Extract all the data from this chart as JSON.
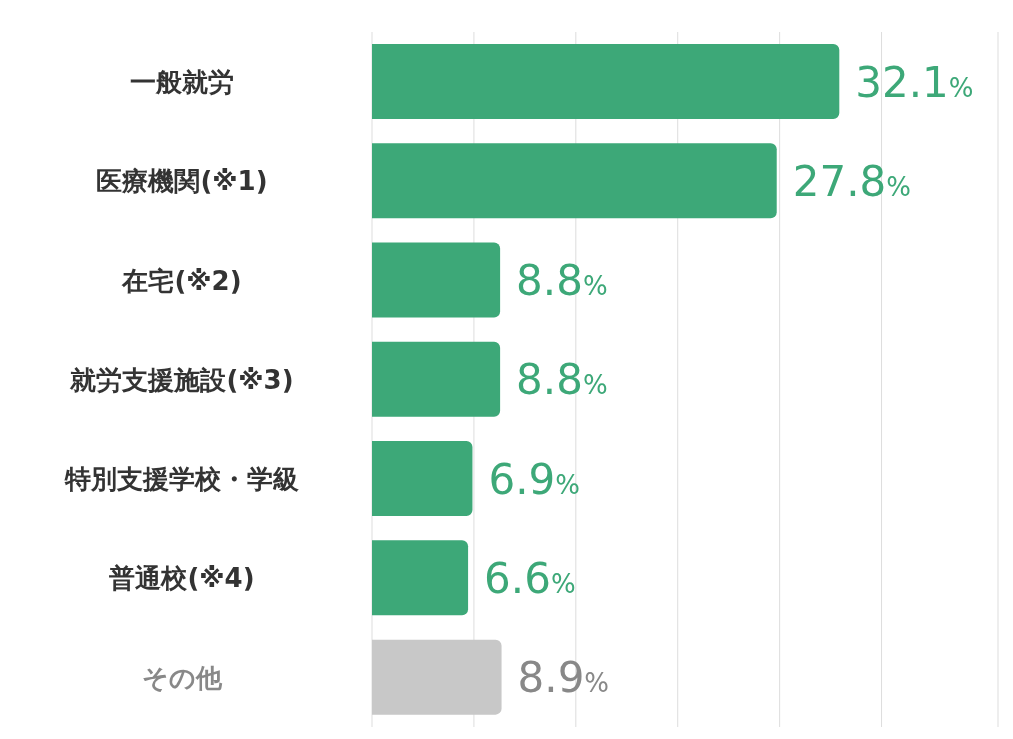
{
  "chart_data": {
    "type": "bar",
    "orientation": "horizontal",
    "categories": [
      "一般就労",
      "医療機関(※1)",
      "在宅(※2)",
      "就労支援施設(※3)",
      "特別支援学校・学級",
      "普通校(※4)",
      "その他"
    ],
    "values": [
      32.1,
      27.8,
      8.8,
      8.8,
      6.9,
      6.6,
      8.9
    ],
    "colors": [
      "#3da878",
      "#3da878",
      "#3da878",
      "#3da878",
      "#3da878",
      "#3da878",
      "#c8c8c8"
    ],
    "value_labels": [
      "32.1%",
      "27.8%",
      "8.8%",
      "8.8%",
      "6.9%",
      "6.6%",
      "8.9%"
    ],
    "xlim": [
      0,
      43
    ],
    "xticks": [
      {
        "value": 0,
        "label": null
      },
      {
        "value": 7,
        "label": null
      },
      {
        "value": 14,
        "label": null
      },
      {
        "value": 21,
        "label": null
      },
      {
        "value": 28,
        "label": null
      },
      {
        "value": 35,
        "label": null
      }
    ],
    "grid": "x",
    "tick_labels": "y"
  }
}
